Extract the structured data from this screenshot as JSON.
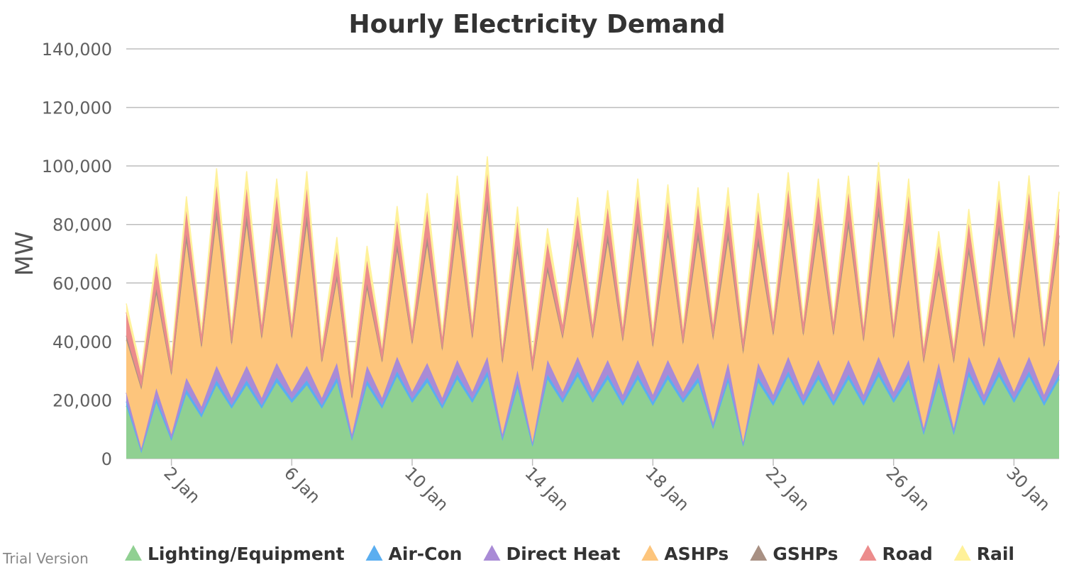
{
  "watermark": "Trial Version",
  "chart_data": {
    "type": "area",
    "stacked": true,
    "title": "Hourly Electricity Demand",
    "xlabel": "",
    "ylabel": "MW",
    "ylim": [
      0,
      140000
    ],
    "xlim_days": [
      0.5,
      31.5
    ],
    "yticks": [
      0,
      20000,
      40000,
      60000,
      80000,
      100000,
      120000,
      140000
    ],
    "ytick_labels": [
      "0",
      "20,000",
      "40,000",
      "60,000",
      "80,000",
      "100,000",
      "120,000",
      "140,000"
    ],
    "xticks": [
      2,
      6,
      10,
      14,
      18,
      22,
      26,
      30
    ],
    "xtick_labels": [
      "2 Jan",
      "6 Jan",
      "10 Jan",
      "14 Jan",
      "18 Jan",
      "22 Jan",
      "26 Jan",
      "30 Jan"
    ],
    "grid": true,
    "legend_position": "bottom",
    "x_days": [
      0.5,
      1.0,
      1.5,
      2.0,
      2.5,
      3.0,
      3.5,
      4.0,
      4.5,
      5.0,
      5.5,
      6.0,
      6.5,
      7.0,
      7.5,
      8.0,
      8.5,
      9.0,
      9.5,
      10.0,
      10.5,
      11.0,
      11.5,
      12.0,
      12.5,
      13.0,
      13.5,
      14.0,
      14.5,
      15.0,
      15.5,
      16.0,
      16.5,
      17.0,
      17.5,
      18.0,
      18.5,
      19.0,
      19.5,
      20.0,
      20.5,
      21.0,
      21.5,
      22.0,
      22.5,
      23.0,
      23.5,
      24.0,
      24.5,
      25.0,
      25.5,
      26.0,
      26.5,
      27.0,
      27.5,
      28.0,
      28.5,
      29.0,
      29.5,
      30.0,
      30.5,
      31.0,
      31.5
    ],
    "series": [
      {
        "name": "Lighting/Equipment",
        "color": "#90d092",
        "values": [
          18000,
          2000,
          19000,
          6000,
          22000,
          14000,
          25000,
          17000,
          25000,
          17000,
          26000,
          19000,
          25000,
          17000,
          26000,
          6000,
          25000,
          17000,
          28000,
          19000,
          26000,
          17000,
          27000,
          19000,
          28000,
          6000,
          24000,
          4000,
          27000,
          19000,
          28000,
          19000,
          27000,
          18000,
          27000,
          18000,
          27000,
          19000,
          26000,
          10000,
          26000,
          4000,
          26000,
          18000,
          28000,
          18000,
          27000,
          18000,
          27000,
          18000,
          28000,
          19000,
          27000,
          8000,
          26000,
          8000,
          28000,
          18000,
          28000,
          19000,
          28000,
          18000,
          27000
        ]
      },
      {
        "name": "Air-Con",
        "color": "#5aaef0",
        "values": [
          1500,
          500,
          1500,
          800,
          1600,
          1200,
          1700,
          1200,
          1700,
          1200,
          1700,
          1300,
          1700,
          1200,
          1700,
          800,
          1700,
          1200,
          1800,
          1300,
          1700,
          1200,
          1700,
          1300,
          1800,
          800,
          1600,
          600,
          1700,
          1300,
          1800,
          1300,
          1700,
          1300,
          1700,
          1300,
          1700,
          1300,
          1700,
          900,
          1700,
          600,
          1700,
          1300,
          1800,
          1300,
          1700,
          1300,
          1700,
          1300,
          1800,
          1300,
          1700,
          900,
          1700,
          900,
          1800,
          1300,
          1800,
          1300,
          1800,
          1300,
          1700
        ]
      },
      {
        "name": "Direct Heat",
        "color": "#a98bd6",
        "values": [
          3000,
          1000,
          3500,
          1500,
          4000,
          2500,
          5000,
          2500,
          5000,
          2500,
          5000,
          2500,
          5000,
          2500,
          5000,
          1500,
          5000,
          2500,
          5000,
          2500,
          5000,
          2500,
          5000,
          2500,
          5000,
          1500,
          4500,
          1000,
          5000,
          2500,
          5000,
          2500,
          5000,
          2500,
          5000,
          2500,
          5000,
          2500,
          5000,
          1500,
          5000,
          1000,
          5000,
          2500,
          5000,
          2500,
          5000,
          2500,
          5000,
          2500,
          5000,
          2500,
          5000,
          1500,
          5000,
          1500,
          5000,
          2500,
          5000,
          2500,
          5000,
          2500,
          5000
        ]
      },
      {
        "name": "ASHPs",
        "color": "#fdc57c",
        "values": [
          18000,
          20000,
          32000,
          20000,
          46000,
          20000,
          50000,
          18000,
          48000,
          20000,
          45000,
          18000,
          48000,
          12000,
          28000,
          12000,
          26000,
          12000,
          36000,
          16000,
          40000,
          16000,
          45000,
          18000,
          50000,
          24000,
          40000,
          24000,
          30000,
          18000,
          38000,
          18000,
          40000,
          18000,
          44000,
          16000,
          42000,
          16000,
          42000,
          28000,
          42000,
          30000,
          40000,
          20000,
          45000,
          20000,
          44000,
          20000,
          45000,
          18000,
          48000,
          18000,
          44000,
          22000,
          30000,
          22000,
          35000,
          16000,
          42000,
          18000,
          44000,
          16000,
          40000
        ]
      },
      {
        "name": "GSHPs",
        "color": "#a89083",
        "values": [
          1500,
          800,
          2000,
          800,
          3000,
          800,
          3500,
          800,
          3500,
          800,
          3000,
          800,
          3500,
          600,
          2000,
          600,
          2000,
          600,
          2500,
          800,
          3000,
          800,
          3000,
          800,
          3500,
          1000,
          3000,
          1000,
          2000,
          800,
          2500,
          800,
          3000,
          800,
          3000,
          800,
          3000,
          800,
          3000,
          1200,
          3000,
          1200,
          3000,
          800,
          3000,
          800,
          3000,
          800,
          3000,
          800,
          3500,
          800,
          3000,
          1000,
          2000,
          1000,
          2500,
          800,
          3000,
          800,
          3000,
          800,
          2500
        ]
      },
      {
        "name": "Road",
        "color": "#ec8c8c",
        "values": [
          8000,
          4000,
          8000,
          4000,
          8000,
          4000,
          8000,
          4000,
          9000,
          4000,
          9000,
          4000,
          9000,
          4000,
          8000,
          4000,
          8000,
          4000,
          8000,
          4000,
          9000,
          4000,
          9000,
          4000,
          9000,
          4000,
          8000,
          4000,
          8000,
          4000,
          8000,
          4000,
          9000,
          4000,
          9000,
          4000,
          9000,
          4000,
          9000,
          4000,
          9000,
          4000,
          9000,
          4000,
          9000,
          4000,
          9000,
          4000,
          9000,
          4000,
          9000,
          4000,
          9000,
          4000,
          8000,
          4000,
          8000,
          4000,
          9000,
          4000,
          9000,
          4000,
          9000
        ]
      },
      {
        "name": "Rail",
        "color": "#fff199",
        "values": [
          3000,
          2000,
          4000,
          2000,
          5000,
          2000,
          6000,
          2000,
          6000,
          2000,
          6000,
          2000,
          6000,
          2000,
          5000,
          2000,
          5000,
          2000,
          5000,
          2000,
          6000,
          2000,
          6000,
          2000,
          6000,
          2000,
          5000,
          2000,
          5000,
          2000,
          6000,
          2000,
          6000,
          2000,
          6000,
          2000,
          6000,
          2000,
          6000,
          2000,
          6000,
          2000,
          6000,
          2000,
          6000,
          2000,
          6000,
          2000,
          6000,
          2000,
          6000,
          2000,
          6000,
          2000,
          5000,
          2000,
          5000,
          2000,
          6000,
          2000,
          6000,
          2000,
          6000
        ]
      }
    ]
  }
}
